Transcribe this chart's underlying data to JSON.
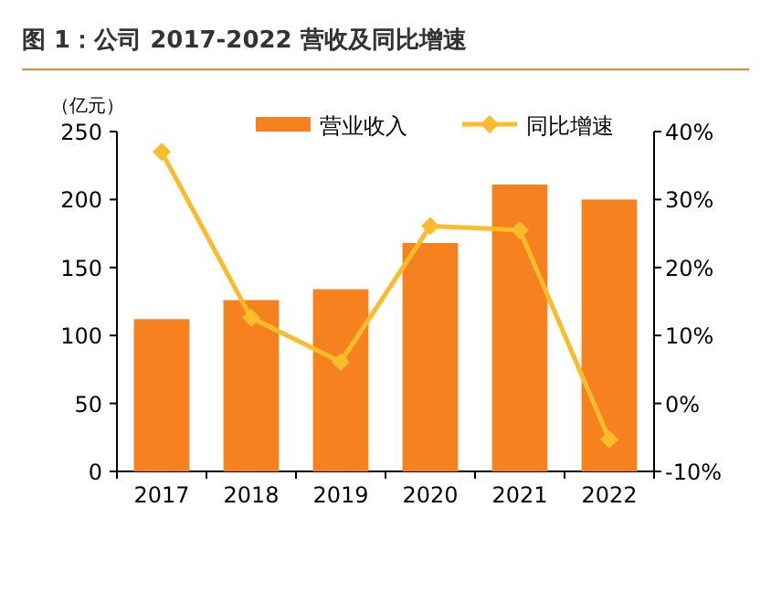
{
  "chart_data": {
    "type": "bar",
    "title": "图 1：公司 2017-2022 营收及同比增速",
    "ylabel": "（亿元）",
    "categories": [
      "2017",
      "2018",
      "2019",
      "2020",
      "2021",
      "2022"
    ],
    "series": [
      {
        "name": "营业收入",
        "color": "#f5821f",
        "values": [
          112,
          126,
          134,
          168,
          211,
          200
        ]
      },
      {
        "name": "同比增速",
        "type": "line",
        "axis": "y2",
        "color": "#fbbc2c",
        "values": [
          37,
          12.6,
          6.1,
          26.1,
          25.5,
          -5.3
        ]
      }
    ],
    "ylim": [
      0,
      250
    ],
    "yticks": [
      0,
      50,
      100,
      150,
      200,
      250
    ],
    "y2lim": [
      -10,
      40
    ],
    "y2ticks": [
      {
        "value": -10,
        "label": "-10%"
      },
      {
        "value": 0,
        "label": "0%"
      },
      {
        "value": 10,
        "label": "10%"
      },
      {
        "value": 20,
        "label": "20%"
      },
      {
        "value": 30,
        "label": "30%"
      },
      {
        "value": 40,
        "label": "40%"
      }
    ],
    "legend": "top",
    "marker": "diamond",
    "grid": false
  }
}
